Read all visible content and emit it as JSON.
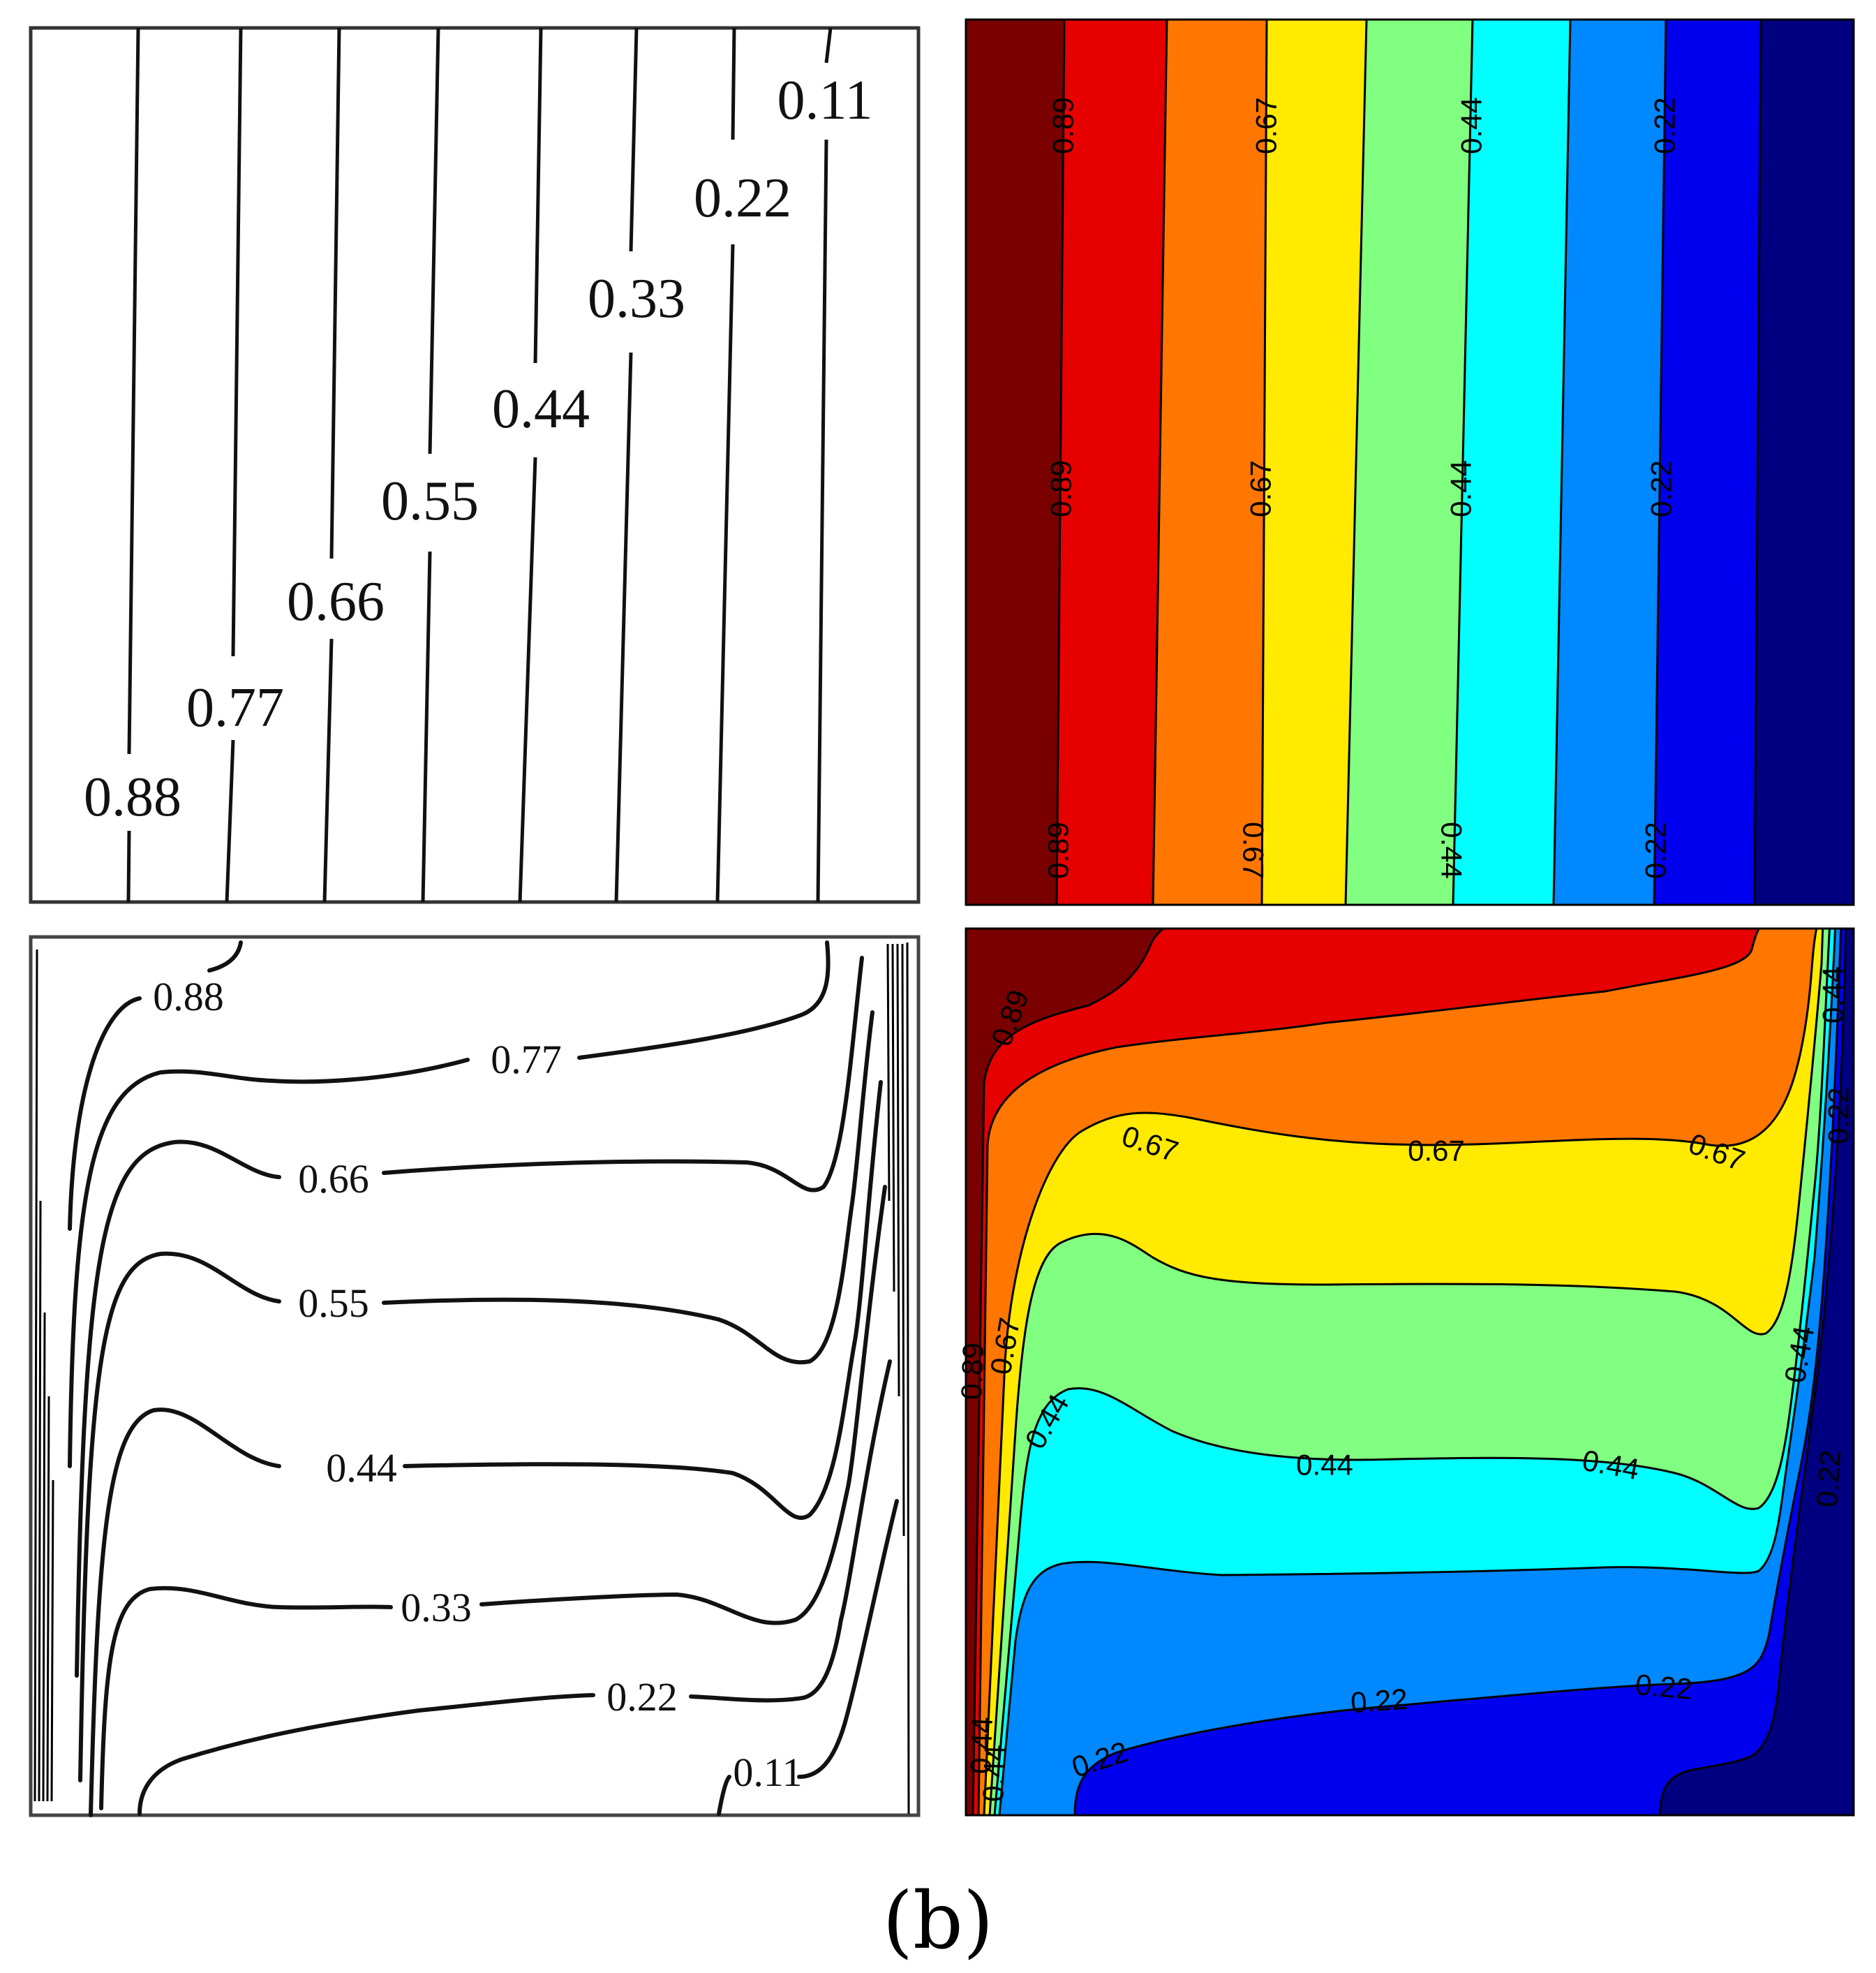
{
  "caption": "(b)",
  "colors": {
    "bands": [
      "#7a0000",
      "#e60000",
      "#ff7700",
      "#ffea00",
      "#80ff80",
      "#00ffff",
      "#0088ff",
      "#0000ee",
      "#000080"
    ],
    "line": "#000000",
    "background": "#ffffff"
  },
  "chart_data": [
    {
      "type": "contour",
      "style": "line",
      "position": "top-left",
      "levels": [
        "0.88",
        "0.77",
        "0.66",
        "0.55",
        "0.44",
        "0.33",
        "0.22",
        "0.11"
      ]
    },
    {
      "type": "contour",
      "style": "filled",
      "position": "top-right",
      "levels": [
        "0.89",
        "0.67",
        "0.44",
        "0.22"
      ],
      "labels": [
        "0.89",
        "0.67",
        "0.44",
        "0.22",
        "0.89",
        "0.67",
        "0.44",
        "0.22",
        "0.89",
        "0.67",
        "0.44",
        "0.22"
      ]
    },
    {
      "type": "contour",
      "style": "line",
      "position": "bottom-left",
      "levels": [
        "0.88",
        "0.77",
        "0.66",
        "0.55",
        "0.44",
        "0.33",
        "0.22",
        "0.11"
      ]
    },
    {
      "type": "contour",
      "style": "filled",
      "position": "bottom-right",
      "labels": [
        "0.89",
        "0.67",
        "0.67",
        "0.67",
        "0.67",
        "0.44",
        "0.44",
        "0.44",
        "0.44",
        "0.44",
        "0.22",
        "0.22",
        "0.22",
        "0.22",
        "0.44",
        "0.22",
        "0.89",
        "0.44"
      ]
    }
  ]
}
